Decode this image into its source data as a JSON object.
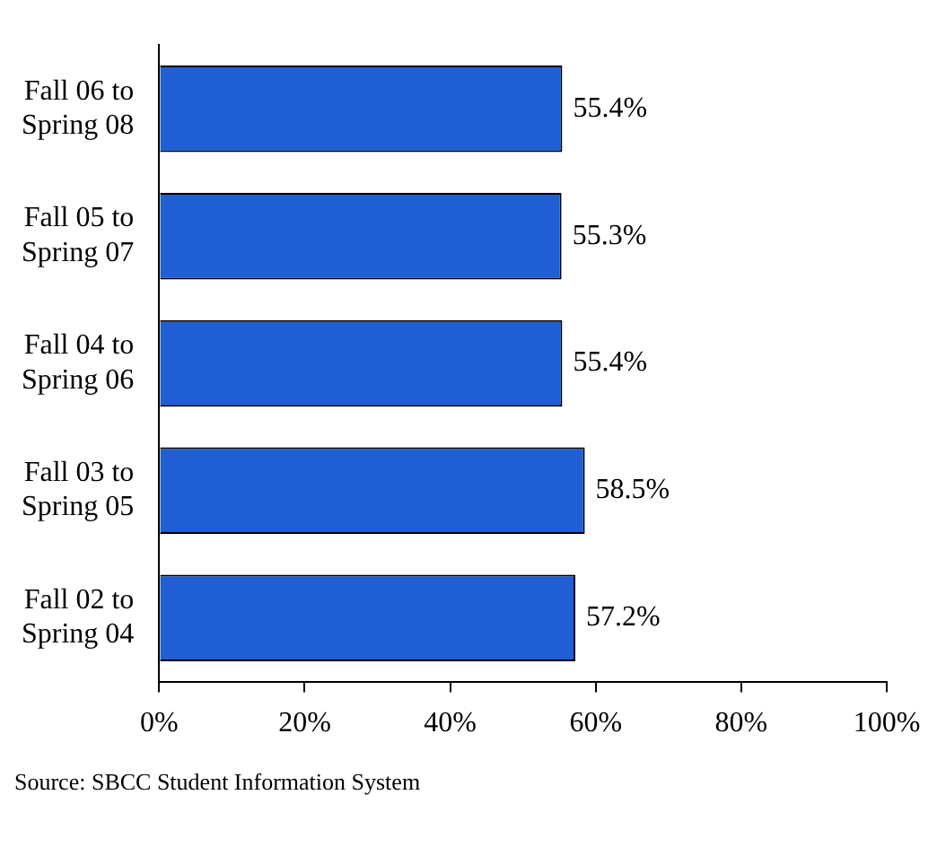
{
  "chart_data": {
    "type": "bar",
    "orientation": "horizontal",
    "categories": [
      "Fall 06 to\nSpring 08",
      "Fall 05 to\nSpring 07",
      "Fall 04 to\nSpring 06",
      "Fall 03 to\nSpring 05",
      "Fall 02 to\nSpring 04"
    ],
    "values": [
      55.4,
      55.3,
      55.4,
      58.5,
      57.2
    ],
    "value_labels": [
      "55.4%",
      "55.3%",
      "55.4%",
      "58.5%",
      "57.2%"
    ],
    "color": "#1f5fd3",
    "xlim": [
      0,
      100
    ],
    "xticks": [
      {
        "value": 0,
        "label": "0%"
      },
      {
        "value": 20,
        "label": "20%"
      },
      {
        "value": 40,
        "label": "40%"
      },
      {
        "value": 60,
        "label": "60%"
      },
      {
        "value": 80,
        "label": "80%"
      },
      {
        "value": 100,
        "label": "100%"
      }
    ],
    "grid": false,
    "legend": false,
    "annotations": [
      "Source: SBCC Student Information System"
    ]
  }
}
